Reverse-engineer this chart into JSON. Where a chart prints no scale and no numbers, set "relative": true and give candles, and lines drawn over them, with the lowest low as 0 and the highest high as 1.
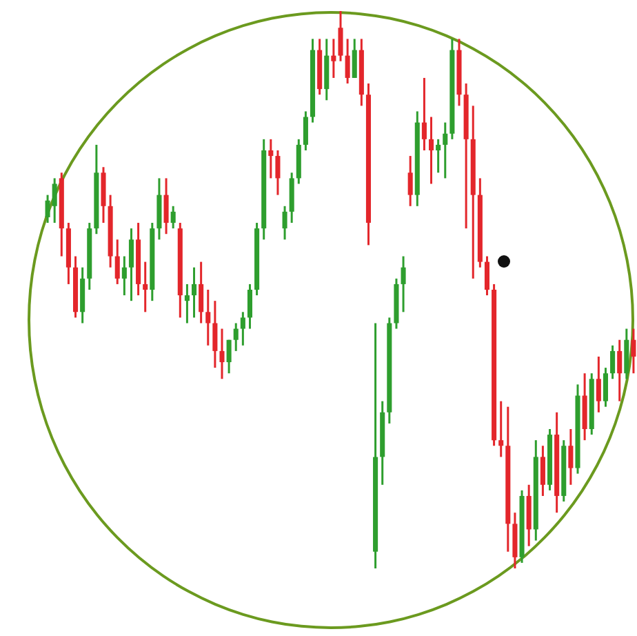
{
  "chart_data": {
    "type": "candlestick",
    "relative": true,
    "colors": [
      "#2e9e2e",
      "#2e9e2e",
      "#e3262b",
      "#e3262b",
      "#e3262b",
      "#2e9e2e",
      "#2e9e2e",
      "#2e9e2e",
      "#e3262b",
      "#e3262b",
      "#e3262b",
      "#2e9e2e",
      "#2e9e2e",
      "#e3262b",
      "#e3262b",
      "#2e9e2e",
      "#2e9e2e",
      "#e3262b",
      "#2e9e2e",
      "#e3262b",
      "#2e9e2e",
      "#2e9e2e",
      "#e3262b",
      "#e3262b",
      "#e3262b",
      "#e3262b",
      "#2e9e2e",
      "#2e9e2e",
      "#2e9e2e",
      "#2e9e2e",
      "#2e9e2e",
      "#2e9e2e",
      "#e3262b",
      "#e3262b",
      "#2e9e2e",
      "#2e9e2e",
      "#2e9e2e",
      "#2e9e2e",
      "#2e9e2e",
      "#e3262b",
      "#2e9e2e",
      "#e3262b",
      "#e3262b",
      "#e3262b",
      "#2e9e2e",
      "#e3262b",
      "#e3262b",
      "#2e9e2e",
      "#2e9e2e",
      "#2e9e2e",
      "#2e9e2e",
      "#2e9e2e",
      "#e3262b",
      "#2e9e2e",
      "#e3262b",
      "#e3262b",
      "#2e9e2e",
      "#2e9e2e",
      "#2e9e2e",
      "#e3262b",
      "#e3262b",
      "#e3262b",
      "#e3262b",
      "#e3262b",
      "#e3262b",
      "#e3262b",
      "#e3262b",
      "#e3262b",
      "#2e9e2e",
      "#e3262b",
      "#2e9e2e",
      "#e3262b",
      "#2e9e2e",
      "#e3262b",
      "#2e9e2e",
      "#e3262b",
      "#2e9e2e",
      "#e3262b",
      "#2e9e2e",
      "#e3262b",
      "#2e9e2e",
      "#2e9e2e",
      "#e3262b",
      "#2e9e2e",
      "#e3262b"
    ],
    "categories": [
      null,
      null,
      null,
      null,
      null,
      null,
      null,
      null,
      null,
      null,
      null,
      null,
      null,
      null,
      null,
      null,
      null,
      null,
      null,
      null,
      null,
      null,
      null,
      null,
      null,
      null,
      null,
      null,
      null,
      null,
      null,
      null,
      null,
      null,
      null,
      null,
      null,
      null,
      null,
      null,
      null,
      null,
      null,
      null,
      null,
      null,
      null,
      null,
      null,
      null,
      null,
      null,
      null,
      null,
      null,
      null,
      null,
      null,
      null,
      null,
      null,
      null,
      null,
      null,
      null,
      null,
      null,
      null,
      null,
      null,
      null,
      null,
      null,
      null,
      null,
      null,
      null,
      null,
      null,
      null,
      null,
      null,
      null,
      null,
      null
    ],
    "ohlc": [
      [
        0.63,
        0.67,
        0.62,
        0.66
      ],
      [
        0.65,
        0.7,
        0.62,
        0.69
      ],
      [
        0.7,
        0.71,
        0.56,
        0.61
      ],
      [
        0.61,
        0.62,
        0.51,
        0.54
      ],
      [
        0.54,
        0.56,
        0.45,
        0.46
      ],
      [
        0.46,
        0.54,
        0.44,
        0.52
      ],
      [
        0.52,
        0.62,
        0.5,
        0.61
      ],
      [
        0.61,
        0.76,
        0.6,
        0.71
      ],
      [
        0.71,
        0.72,
        0.62,
        0.65
      ],
      [
        0.65,
        0.67,
        0.54,
        0.56
      ],
      [
        0.56,
        0.59,
        0.51,
        0.52
      ],
      [
        0.52,
        0.56,
        0.49,
        0.54
      ],
      [
        0.54,
        0.61,
        0.48,
        0.59
      ],
      [
        0.59,
        0.62,
        0.49,
        0.51
      ],
      [
        0.51,
        0.55,
        0.46,
        0.5
      ],
      [
        0.5,
        0.62,
        0.48,
        0.61
      ],
      [
        0.61,
        0.7,
        0.59,
        0.67
      ],
      [
        0.67,
        0.7,
        0.6,
        0.62
      ],
      [
        0.62,
        0.65,
        0.61,
        0.64
      ],
      [
        0.61,
        0.62,
        0.45,
        0.49
      ],
      [
        0.48,
        0.51,
        0.44,
        0.49
      ],
      [
        0.49,
        0.54,
        0.45,
        0.51
      ],
      [
        0.51,
        0.55,
        0.44,
        0.46
      ],
      [
        0.46,
        0.5,
        0.4,
        0.44
      ],
      [
        0.44,
        0.48,
        0.36,
        0.39
      ],
      [
        0.39,
        0.43,
        0.34,
        0.37
      ],
      [
        0.37,
        0.41,
        0.35,
        0.41
      ],
      [
        0.41,
        0.44,
        0.39,
        0.43
      ],
      [
        0.43,
        0.46,
        0.4,
        0.45
      ],
      [
        0.45,
        0.51,
        0.43,
        0.5
      ],
      [
        0.5,
        0.62,
        0.49,
        0.61
      ],
      [
        0.61,
        0.77,
        0.59,
        0.75
      ],
      [
        0.75,
        0.77,
        0.7,
        0.74
      ],
      [
        0.74,
        0.75,
        0.67,
        0.7
      ],
      [
        0.61,
        0.65,
        0.59,
        0.64
      ],
      [
        0.64,
        0.71,
        0.62,
        0.7
      ],
      [
        0.7,
        0.77,
        0.69,
        0.76
      ],
      [
        0.76,
        0.82,
        0.75,
        0.81
      ],
      [
        0.81,
        0.95,
        0.8,
        0.93
      ],
      [
        0.93,
        0.95,
        0.85,
        0.86
      ],
      [
        0.86,
        0.95,
        0.84,
        0.92
      ],
      [
        0.92,
        0.95,
        0.88,
        0.91
      ],
      [
        0.97,
        1,
        0.91,
        0.92
      ],
      [
        0.92,
        0.95,
        0.87,
        0.88
      ],
      [
        0.88,
        0.95,
        0.88,
        0.93
      ],
      [
        0.93,
        0.95,
        0.83,
        0.85
      ],
      [
        0.85,
        0.87,
        0.58,
        0.62
      ],
      [
        0.03,
        0.44,
        0,
        0.2
      ],
      [
        0.2,
        0.3,
        0.15,
        0.28
      ],
      [
        0.28,
        0.45,
        0.26,
        0.44
      ],
      [
        0.44,
        0.52,
        0.43,
        0.51
      ],
      [
        0.51,
        0.56,
        0.46,
        0.54
      ],
      [
        0.71,
        0.74,
        0.65,
        0.67
      ],
      [
        0.67,
        0.82,
        0.65,
        0.8
      ],
      [
        0.8,
        0.88,
        0.75,
        0.77
      ],
      [
        0.77,
        0.81,
        0.69,
        0.75
      ],
      [
        0.75,
        0.77,
        0.71,
        0.76
      ],
      [
        0.76,
        0.8,
        0.7,
        0.78
      ],
      [
        0.78,
        0.95,
        0.77,
        0.93
      ],
      [
        0.93,
        0.95,
        0.83,
        0.85
      ],
      [
        0.85,
        0.87,
        0.61,
        0.77
      ],
      [
        0.77,
        0.83,
        0.52,
        0.67
      ],
      [
        0.67,
        0.7,
        0.54,
        0.55
      ],
      [
        0.55,
        0.56,
        0.49,
        0.5
      ],
      [
        0.5,
        0.51,
        0.22,
        0.23
      ],
      [
        0.23,
        0.3,
        0.2,
        0.22
      ],
      [
        0.22,
        0.29,
        0.03,
        0.08
      ],
      [
        0.08,
        0.1,
        0,
        0.02
      ],
      [
        0.02,
        0.14,
        0.01,
        0.13
      ],
      [
        0.13,
        0.15,
        0.04,
        0.07
      ],
      [
        0.07,
        0.23,
        0.05,
        0.2
      ],
      [
        0.2,
        0.22,
        0.13,
        0.15
      ],
      [
        0.15,
        0.25,
        0.14,
        0.24
      ],
      [
        0.24,
        0.28,
        0.1,
        0.13
      ],
      [
        0.13,
        0.23,
        0.12,
        0.22
      ],
      [
        0.22,
        0.25,
        0.15,
        0.18
      ],
      [
        0.18,
        0.33,
        0.17,
        0.31
      ],
      [
        0.31,
        0.35,
        0.23,
        0.25
      ],
      [
        0.25,
        0.35,
        0.24,
        0.34
      ],
      [
        0.34,
        0.38,
        0.28,
        0.3
      ],
      [
        0.3,
        0.36,
        0.29,
        0.35
      ],
      [
        0.35,
        0.4,
        0.34,
        0.39
      ],
      [
        0.39,
        0.41,
        0.3,
        0.35
      ],
      [
        0.35,
        0.43,
        0.34,
        0.41
      ],
      [
        0.41,
        0.43,
        0.35,
        0.38
      ]
    ]
  }
}
